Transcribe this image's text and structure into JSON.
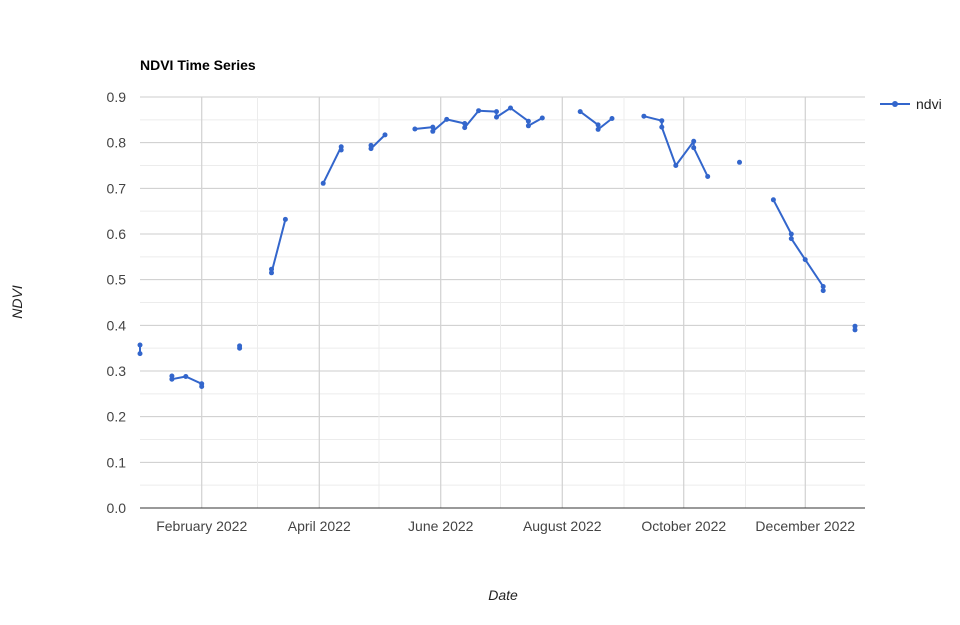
{
  "chart_data": {
    "type": "line",
    "title": "NDVI Time Series",
    "xlabel": "Date",
    "ylabel": "NDVI",
    "ylim": [
      0,
      0.9
    ],
    "yticks": [
      "0.0",
      "0.1",
      "0.2",
      "0.3",
      "0.4",
      "0.5",
      "0.6",
      "0.7",
      "0.8",
      "0.9"
    ],
    "xlim": [
      "2022-01-01",
      "2022-12-31"
    ],
    "xticks": [
      {
        "date": "2022-02-01",
        "label": "February 2022"
      },
      {
        "date": "2022-04-01",
        "label": "April 2022"
      },
      {
        "date": "2022-06-01",
        "label": "June 2022"
      },
      {
        "date": "2022-08-01",
        "label": "August 2022"
      },
      {
        "date": "2022-10-01",
        "label": "October 2022"
      },
      {
        "date": "2022-12-01",
        "label": "December 2022"
      }
    ],
    "grid": true,
    "legend_position": "right",
    "series": [
      {
        "name": "ndvi",
        "color": "#3366cc",
        "segments": [
          [
            [
              "2022-01-01",
              0.357
            ],
            [
              "2022-01-01",
              0.338
            ]
          ],
          [
            [
              "2022-01-17",
              0.289
            ],
            [
              "2022-01-17",
              0.282
            ],
            [
              "2022-01-24",
              0.288
            ],
            [
              "2022-02-01",
              0.272
            ],
            [
              "2022-02-01",
              0.266
            ]
          ],
          [
            [
              "2022-02-20",
              0.355
            ],
            [
              "2022-02-20",
              0.35
            ]
          ],
          [
            [
              "2022-03-08",
              0.523
            ],
            [
              "2022-03-08",
              0.515
            ],
            [
              "2022-03-15",
              0.632
            ]
          ],
          [
            [
              "2022-04-03",
              0.711
            ],
            [
              "2022-04-12",
              0.791
            ],
            [
              "2022-04-12",
              0.784
            ]
          ],
          [
            [
              "2022-04-27",
              0.794
            ],
            [
              "2022-04-27",
              0.787
            ],
            [
              "2022-05-04",
              0.817
            ]
          ],
          [
            [
              "2022-05-19",
              0.83
            ],
            [
              "2022-05-28",
              0.834
            ],
            [
              "2022-05-28",
              0.825
            ],
            [
              "2022-06-04",
              0.851
            ],
            [
              "2022-06-13",
              0.842
            ],
            [
              "2022-06-13",
              0.833
            ],
            [
              "2022-06-20",
              0.87
            ],
            [
              "2022-06-29",
              0.868
            ],
            [
              "2022-06-29",
              0.856
            ],
            [
              "2022-07-06",
              0.876
            ],
            [
              "2022-07-15",
              0.847
            ],
            [
              "2022-07-15",
              0.837
            ],
            [
              "2022-07-22",
              0.854
            ]
          ],
          [
            [
              "2022-08-10",
              0.868
            ],
            [
              "2022-08-19",
              0.839
            ],
            [
              "2022-08-19",
              0.829
            ],
            [
              "2022-08-26",
              0.853
            ]
          ],
          [
            [
              "2022-09-11",
              0.858
            ],
            [
              "2022-09-20",
              0.848
            ],
            [
              "2022-09-20",
              0.834
            ],
            [
              "2022-09-27",
              0.75
            ],
            [
              "2022-10-06",
              0.803
            ],
            [
              "2022-10-06",
              0.789
            ],
            [
              "2022-10-13",
              0.726
            ]
          ],
          [
            [
              "2022-10-29",
              0.757
            ]
          ],
          [
            [
              "2022-11-15",
              0.675
            ],
            [
              "2022-11-24",
              0.6
            ],
            [
              "2022-11-24",
              0.59
            ],
            [
              "2022-12-01",
              0.544
            ],
            [
              "2022-12-10",
              0.485
            ],
            [
              "2022-12-10",
              0.476
            ]
          ],
          [
            [
              "2022-12-26",
              0.398
            ],
            [
              "2022-12-26",
              0.39
            ]
          ]
        ]
      }
    ]
  }
}
